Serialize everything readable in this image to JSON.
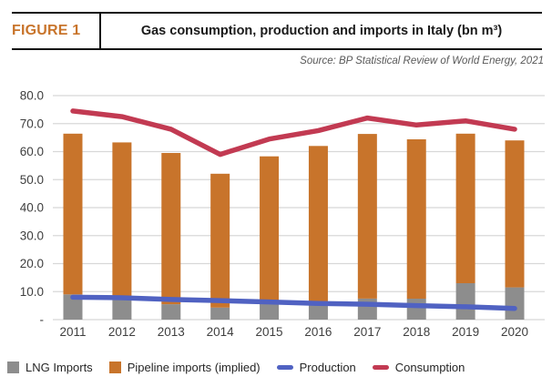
{
  "header": {
    "figure_label": "FIGURE 1",
    "title": "Gas consumption, production and imports in Italy (bn m³)"
  },
  "source": "Source: BP Statistical Review of World Energy, 2021",
  "colors": {
    "lng_gray": "#8D8D8D",
    "pipeline_orange": "#C8742B",
    "production_blue": "#5062C2",
    "consumption_red": "#C23A52",
    "grid": "#D8D8D8",
    "axis_text": "#3F3F3F",
    "figure_label_orange": "#C8742B"
  },
  "chart_data": {
    "type": "bar",
    "subtype": "stacked-bars-with-lines-combo",
    "title": "Gas consumption, production and imports in Italy (bn m³)",
    "categories": [
      "2011",
      "2012",
      "2013",
      "2014",
      "2015",
      "2016",
      "2017",
      "2018",
      "2019",
      "2020"
    ],
    "series": [
      {
        "name": "LNG Imports",
        "kind": "bar",
        "color_key": "lng_gray",
        "values": [
          9.0,
          7.0,
          5.5,
          4.3,
          5.9,
          5.8,
          7.5,
          7.5,
          13.0,
          11.5
        ]
      },
      {
        "name": "Pipeline imports (implied)",
        "kind": "bar",
        "color_key": "pipeline_orange",
        "values": [
          57.4,
          56.3,
          54.0,
          47.8,
          52.4,
          56.2,
          58.8,
          56.9,
          53.4,
          52.5
        ]
      },
      {
        "name": "Production",
        "kind": "line",
        "color_key": "production_blue",
        "values": [
          8.0,
          7.8,
          7.2,
          6.8,
          6.3,
          5.8,
          5.5,
          5.0,
          4.6,
          4.0
        ]
      },
      {
        "name": "Consumption",
        "kind": "line",
        "color_key": "consumption_red",
        "values": [
          74.5,
          72.5,
          68.0,
          59.0,
          64.5,
          67.5,
          72.0,
          69.5,
          71.0,
          68.0
        ]
      }
    ],
    "xlabel": "",
    "ylabel": "",
    "ylim": [
      0,
      80
    ],
    "ytick_step": 10,
    "ytick_labels": [
      "-",
      "10.0",
      "20.0",
      "30.0",
      "40.0",
      "50.0",
      "60.0",
      "70.0",
      "80.0"
    ],
    "grid": true,
    "legend_position": "bottom"
  },
  "legend": {
    "items": [
      {
        "label": "LNG Imports",
        "marker": "square",
        "color_key": "lng_gray"
      },
      {
        "label": "Pipeline imports (implied)",
        "marker": "square",
        "color_key": "pipeline_orange"
      },
      {
        "label": "Production",
        "marker": "line",
        "color_key": "production_blue"
      },
      {
        "label": "Consumption",
        "marker": "line",
        "color_key": "consumption_red"
      }
    ]
  }
}
